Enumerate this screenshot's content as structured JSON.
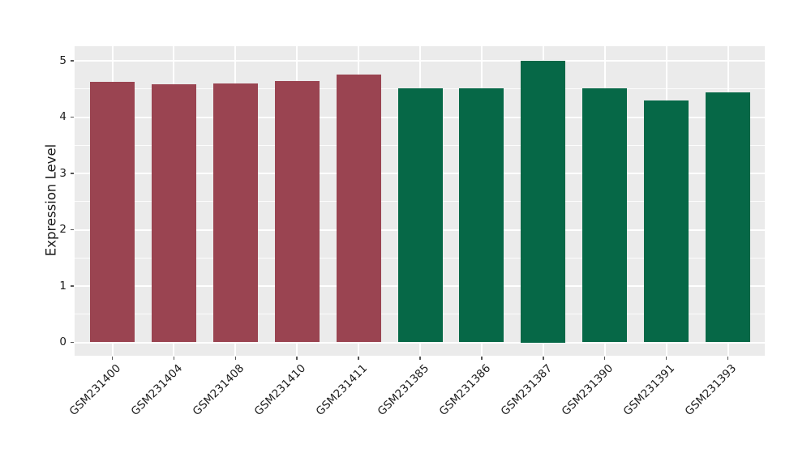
{
  "figure": {
    "background_color": "#ffffff",
    "panel_background_color": "#ebebeb",
    "grid_color": "#ffffff",
    "tick_mark_color": "#555555",
    "text_color": "#1c1c1c",
    "group_colors": {
      "group_red": "#9a4451",
      "group_green": "#066847"
    }
  },
  "chart_data": {
    "type": "bar",
    "title": "",
    "xlabel": "",
    "ylabel": "Expression Level",
    "categories": [
      "GSM231400",
      "GSM231404",
      "GSM231408",
      "GSM231410",
      "GSM231411",
      "GSM231385",
      "GSM231386",
      "GSM231387",
      "GSM231390",
      "GSM231391",
      "GSM231393"
    ],
    "values": [
      4.63,
      4.58,
      4.6,
      4.64,
      4.76,
      4.51,
      4.51,
      5.0,
      4.51,
      4.3,
      4.44
    ],
    "bar_colors": [
      "#9a4451",
      "#9a4451",
      "#9a4451",
      "#9a4451",
      "#9a4451",
      "#066847",
      "#066847",
      "#066847",
      "#066847",
      "#066847",
      "#066847"
    ],
    "ytick_labels": [
      "0",
      "1",
      "2",
      "3",
      "4",
      "5"
    ],
    "ytick_values": [
      0,
      1,
      2,
      3,
      4,
      5
    ],
    "minor_ytick_values": [
      0.5,
      1.5,
      2.5,
      3.5,
      4.5
    ],
    "ylim": [
      0,
      5
    ],
    "grid": {
      "major": true,
      "minor": true,
      "vertical_at_categories": true
    },
    "legend_position": "none",
    "x_label_rotation_deg": 45
  }
}
